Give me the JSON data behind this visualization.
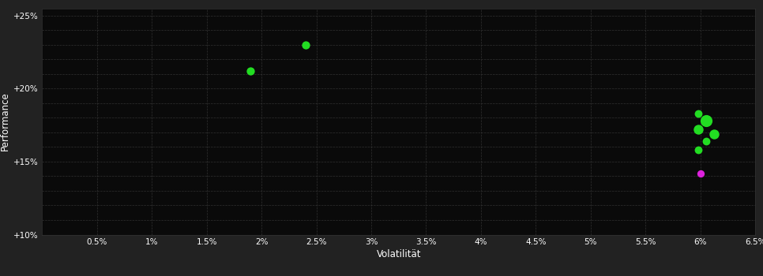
{
  "background_color": "#222222",
  "plot_bg_color": "#0a0a0a",
  "grid_color": "#3a3a3a",
  "text_color": "#ffffff",
  "xlabel": "Volatilität",
  "ylabel": "Performance",
  "xlim": [
    0.0,
    0.065
  ],
  "ylim": [
    0.1,
    0.255
  ],
  "xticks": [
    0.005,
    0.01,
    0.015,
    0.02,
    0.025,
    0.03,
    0.035,
    0.04,
    0.045,
    0.05,
    0.055,
    0.06,
    0.065
  ],
  "yticks": [
    0.1,
    0.15,
    0.2,
    0.25
  ],
  "ytick_labels": [
    "+10%",
    "+15%",
    "+20%",
    "+25%"
  ],
  "xtick_labels": [
    "0.5%",
    "1%",
    "1.5%",
    "2%",
    "2.5%",
    "3%",
    "3.5%",
    "4%",
    "4.5%",
    "5%",
    "5.5%",
    "6%",
    "6.5%"
  ],
  "green_points": [
    [
      0.019,
      0.212
    ],
    [
      0.024,
      0.23
    ],
    [
      0.0598,
      0.183
    ],
    [
      0.0605,
      0.178
    ],
    [
      0.0598,
      0.172
    ],
    [
      0.0612,
      0.169
    ],
    [
      0.0605,
      0.164
    ],
    [
      0.0598,
      0.158
    ]
  ],
  "green_sizes": [
    55,
    55,
    50,
    120,
    80,
    80,
    50,
    50
  ],
  "magenta_points": [
    [
      0.06,
      0.142
    ]
  ],
  "green_color": "#22dd22",
  "magenta_color": "#dd22dd",
  "magenta_size": 45,
  "extra_yticks": [
    0.11,
    0.12,
    0.13,
    0.14,
    0.16,
    0.17,
    0.18,
    0.19,
    0.21,
    0.22,
    0.23,
    0.24
  ]
}
